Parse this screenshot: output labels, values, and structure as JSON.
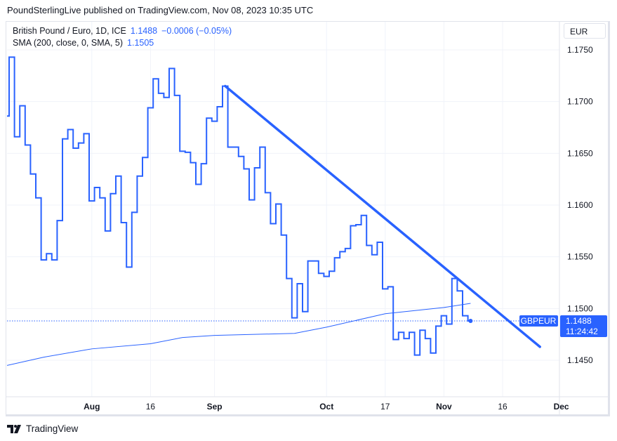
{
  "header": {
    "published": "PoundSterlingLive published on TradingView.com, Nov 08, 2023 10:35 UTC"
  },
  "legend": {
    "symbol": "British Pound / Euro, 1D, ICE",
    "last": "1.1488",
    "change": "−0.0006 (−0.05%)",
    "sma_label": "SMA (200, close, 0, SMA, 5)",
    "sma_value": "1.1505"
  },
  "currency": "EUR",
  "price_tag": {
    "symbol": "GBPEUR",
    "price": "1.1488",
    "countdown": "11:24:42"
  },
  "footer": {
    "brand": "TradingView",
    "logo_icon": "tradingview-logo-icon"
  },
  "colors": {
    "line": "#2962ff",
    "grid": "#f0f3fa",
    "text": "#131722"
  },
  "chart_data": {
    "type": "line",
    "style": "step",
    "title": "",
    "xlabel": "",
    "ylabel": "",
    "ylim": [
      1.1415,
      1.1775
    ],
    "grid": true,
    "y_ticks": [
      "1.1750",
      "1.1700",
      "1.1650",
      "1.1600",
      "1.1550",
      "1.1500",
      "1.1450"
    ],
    "x_ticks": [
      {
        "label": "Aug",
        "date": "2023-08-01",
        "bold": true
      },
      {
        "label": "16",
        "date": "2023-08-16",
        "bold": false
      },
      {
        "label": "Sep",
        "date": "2023-09-01",
        "bold": true
      },
      {
        "label": "Oct",
        "date": "2023-10-02",
        "bold": true
      },
      {
        "label": "17",
        "date": "2023-10-17",
        "bold": false
      },
      {
        "label": "Nov",
        "date": "2023-11-01",
        "bold": true
      },
      {
        "label": "16",
        "date": "2023-11-16",
        "bold": false
      },
      {
        "label": "Dec",
        "date": "2023-12-01",
        "bold": true
      }
    ],
    "series": [
      {
        "name": "British Pound / Euro",
        "dates": [
          "2023-07-10",
          "2023-07-11",
          "2023-07-12",
          "2023-07-13",
          "2023-07-14",
          "2023-07-17",
          "2023-07-18",
          "2023-07-19",
          "2023-07-20",
          "2023-07-21",
          "2023-07-24",
          "2023-07-25",
          "2023-07-26",
          "2023-07-27",
          "2023-07-28",
          "2023-07-31",
          "2023-08-01",
          "2023-08-02",
          "2023-08-03",
          "2023-08-04",
          "2023-08-07",
          "2023-08-08",
          "2023-08-09",
          "2023-08-10",
          "2023-08-11",
          "2023-08-14",
          "2023-08-15",
          "2023-08-16",
          "2023-08-17",
          "2023-08-18",
          "2023-08-21",
          "2023-08-22",
          "2023-08-23",
          "2023-08-24",
          "2023-08-25",
          "2023-08-28",
          "2023-08-29",
          "2023-08-30",
          "2023-08-31",
          "2023-09-01",
          "2023-09-04",
          "2023-09-05",
          "2023-09-06",
          "2023-09-07",
          "2023-09-08",
          "2023-09-11",
          "2023-09-12",
          "2023-09-13",
          "2023-09-14",
          "2023-09-15",
          "2023-09-18",
          "2023-09-19",
          "2023-09-20",
          "2023-09-21",
          "2023-09-22",
          "2023-09-25",
          "2023-09-26",
          "2023-09-27",
          "2023-09-28",
          "2023-09-29",
          "2023-10-02",
          "2023-10-03",
          "2023-10-04",
          "2023-10-05",
          "2023-10-06",
          "2023-10-09",
          "2023-10-10",
          "2023-10-11",
          "2023-10-12",
          "2023-10-13",
          "2023-10-16",
          "2023-10-17",
          "2023-10-18",
          "2023-10-19",
          "2023-10-20",
          "2023-10-23",
          "2023-10-24",
          "2023-10-25",
          "2023-10-26",
          "2023-10-27",
          "2023-10-30",
          "2023-10-31",
          "2023-11-01",
          "2023-11-02",
          "2023-11-03",
          "2023-11-06",
          "2023-11-07",
          "2023-11-08"
        ],
        "values": [
          1.1686,
          1.1743,
          1.1666,
          1.1696,
          1.1658,
          1.163,
          1.1607,
          1.1547,
          1.1553,
          1.1547,
          1.1585,
          1.1664,
          1.1673,
          1.1655,
          1.166,
          1.1669,
          1.1604,
          1.1617,
          1.1607,
          1.1575,
          1.1611,
          1.1628,
          1.1583,
          1.154,
          1.1593,
          1.1628,
          1.1646,
          1.1694,
          1.1722,
          1.1708,
          1.1704,
          1.1732,
          1.1706,
          1.1652,
          1.1651,
          1.1641,
          1.162,
          1.164,
          1.1684,
          1.1681,
          1.1695,
          1.1715,
          1.1656,
          1.1656,
          1.1647,
          1.1635,
          1.1605,
          1.1636,
          1.1656,
          1.1612,
          1.1582,
          1.1601,
          1.1571,
          1.1529,
          1.1491,
          1.1524,
          1.1497,
          1.1546,
          1.1546,
          1.1534,
          1.1531,
          1.1536,
          1.1549,
          1.1555,
          1.1558,
          1.158,
          1.1581,
          1.159,
          1.1561,
          1.1552,
          1.1564,
          1.1519,
          1.1521,
          1.147,
          1.1477,
          1.1471,
          1.1477,
          1.1455,
          1.1479,
          1.1471,
          1.1457,
          1.1483,
          1.1493,
          1.1485,
          1.1529,
          1.1517,
          1.1493,
          1.1488
        ]
      },
      {
        "name": "SMA (200, close, 0, SMA, 5)",
        "dates": [
          "2023-07-10",
          "2023-07-19",
          "2023-08-01",
          "2023-08-16",
          "2023-08-24",
          "2023-09-01",
          "2023-09-22",
          "2023-10-02",
          "2023-10-17",
          "2023-11-01",
          "2023-11-08"
        ],
        "values": [
          1.1445,
          1.1453,
          1.1461,
          1.1466,
          1.1472,
          1.1474,
          1.1476,
          1.1482,
          1.1495,
          1.1501,
          1.1505
        ]
      }
    ],
    "trendline": {
      "points": [
        {
          "date": "2023-09-05",
          "value": 1.1715
        },
        {
          "date": "2023-11-27",
          "value": 1.1463
        }
      ]
    }
  }
}
